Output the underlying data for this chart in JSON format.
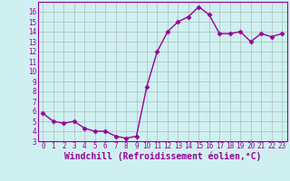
{
  "x": [
    0,
    1,
    2,
    3,
    4,
    5,
    6,
    7,
    8,
    9,
    10,
    11,
    12,
    13,
    14,
    15,
    16,
    17,
    18,
    19,
    20,
    21,
    22,
    23
  ],
  "y": [
    5.8,
    5.0,
    4.8,
    5.0,
    4.3,
    4.0,
    4.0,
    3.5,
    3.3,
    3.5,
    8.5,
    12.0,
    14.0,
    15.0,
    15.5,
    16.5,
    15.7,
    13.8,
    13.8,
    14.0,
    13.0,
    13.8,
    13.5,
    13.8
  ],
  "color": "#990099",
  "bg_color": "#cff0f0",
  "grid_color": "#aabbbb",
  "xlabel": "Windchill (Refroidissement éolien,°C)",
  "ylim": [
    3,
    17
  ],
  "xlim": [
    -0.5,
    23.5
  ],
  "yticks": [
    3,
    4,
    5,
    6,
    7,
    8,
    9,
    10,
    11,
    12,
    13,
    14,
    15,
    16
  ],
  "xticks": [
    0,
    1,
    2,
    3,
    4,
    5,
    6,
    7,
    8,
    9,
    10,
    11,
    12,
    13,
    14,
    15,
    16,
    17,
    18,
    19,
    20,
    21,
    22,
    23
  ],
  "marker": "D",
  "marker_size": 2.5,
  "line_width": 1.0,
  "xlabel_fontsize": 7,
  "tick_fontsize": 5.5
}
